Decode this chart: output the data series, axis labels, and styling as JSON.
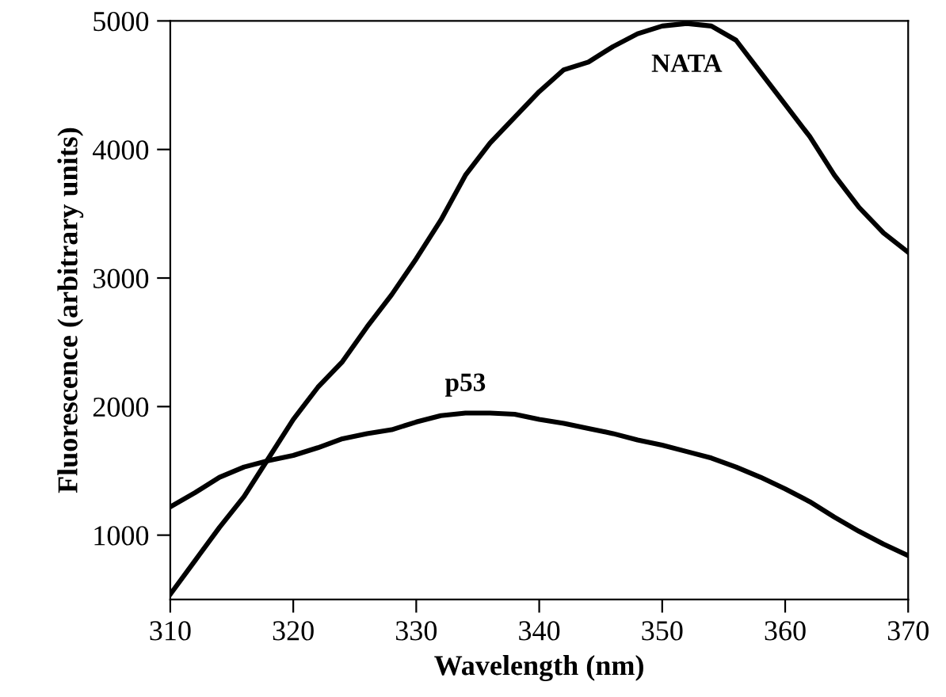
{
  "chart_data": {
    "type": "line",
    "xlabel": "Wavelength (nm)",
    "ylabel": "Fluorescence (arbitrary units)",
    "x": [
      310,
      312,
      314,
      316,
      318,
      320,
      322,
      324,
      326,
      328,
      330,
      332,
      334,
      336,
      338,
      340,
      342,
      344,
      346,
      348,
      350,
      352,
      354,
      356,
      358,
      360,
      362,
      364,
      366,
      368,
      370
    ],
    "series": [
      {
        "name": "NATA",
        "color": "#000000",
        "values": [
          540,
          800,
          1060,
          1300,
          1600,
          1900,
          2150,
          2350,
          2620,
          2870,
          3150,
          3450,
          3800,
          4050,
          4250,
          4450,
          4620,
          4680,
          4800,
          4900,
          4960,
          4980,
          4960,
          4850,
          4600,
          4350,
          4100,
          3800,
          3550,
          3350,
          3200
        ]
      },
      {
        "name": "p53",
        "color": "#000000",
        "values": [
          1220,
          1330,
          1450,
          1530,
          1580,
          1620,
          1680,
          1750,
          1790,
          1820,
          1880,
          1930,
          1950,
          1950,
          1940,
          1900,
          1870,
          1830,
          1790,
          1740,
          1700,
          1650,
          1600,
          1530,
          1450,
          1360,
          1260,
          1140,
          1030,
          930,
          840
        ]
      }
    ],
    "xlim": [
      310,
      370
    ],
    "xticks": [
      310,
      320,
      330,
      340,
      350,
      360,
      370
    ],
    "ylim": [
      500,
      5000
    ],
    "yticks": [
      1000,
      2000,
      3000,
      4000,
      5000
    ],
    "grid": false,
    "legend": false,
    "marker": "none",
    "line_style": "solid"
  }
}
